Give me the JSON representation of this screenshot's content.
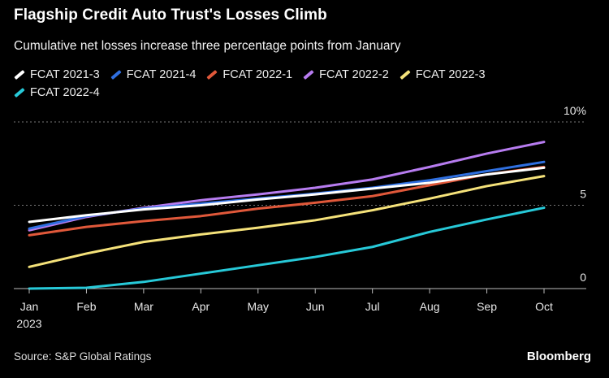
{
  "header": {
    "title": "Flagship Credit Auto Trust's Losses Climb",
    "subtitle": "Cumulative net losses increase three percentage points from January"
  },
  "footer": {
    "source": "Source: S&P Global Ratings",
    "brand": "Bloomberg"
  },
  "chart_data": {
    "type": "line",
    "title": "Flagship Credit Auto Trust's Losses Climb",
    "subtitle": "Cumulative net losses increase three percentage points from January",
    "xlabel": "",
    "ylabel": "",
    "categories": [
      "Jan",
      "Feb",
      "Mar",
      "Apr",
      "May",
      "Jun",
      "Jul",
      "Aug",
      "Sep",
      "Oct"
    ],
    "x_tick_labels": [
      "Jan",
      "Feb",
      "Mar",
      "Apr",
      "May",
      "Jun",
      "Jul",
      "Aug",
      "Sep",
      "Oct"
    ],
    "x_year_label": "2023",
    "y_ticks": [
      0,
      5,
      10
    ],
    "y_tick_labels": [
      "0",
      "5",
      "10%"
    ],
    "ylim": [
      0,
      10
    ],
    "grid": true,
    "legend_position": "top-left",
    "series": [
      {
        "name": "FCAT 2021-3",
        "color": "#ffffff",
        "values": [
          4.0,
          4.4,
          4.75,
          5.0,
          5.35,
          5.65,
          6.0,
          6.35,
          6.85,
          7.25
        ]
      },
      {
        "name": "FCAT 2021-4",
        "color": "#2f6fe0",
        "values": [
          3.6,
          4.35,
          4.8,
          5.1,
          5.4,
          5.7,
          6.05,
          6.5,
          7.05,
          7.6
        ]
      },
      {
        "name": "FCAT 2022-1",
        "color": "#e0583a",
        "values": [
          3.2,
          3.7,
          4.05,
          4.35,
          4.8,
          5.15,
          5.55,
          6.2,
          6.85,
          7.3
        ]
      },
      {
        "name": "FCAT 2022-2",
        "color": "#b77cf0",
        "values": [
          3.5,
          4.3,
          4.85,
          5.3,
          5.65,
          6.05,
          6.55,
          7.3,
          8.1,
          8.8
        ]
      },
      {
        "name": "FCAT 2022-3",
        "color": "#f5e27a",
        "values": [
          1.3,
          2.1,
          2.8,
          3.25,
          3.65,
          4.1,
          4.7,
          5.4,
          6.15,
          6.75
        ]
      },
      {
        "name": "FCAT 2022-4",
        "color": "#27c9d8",
        "values": [
          0.0,
          0.05,
          0.4,
          0.9,
          1.4,
          1.9,
          2.5,
          3.4,
          4.15,
          4.85
        ]
      }
    ]
  }
}
